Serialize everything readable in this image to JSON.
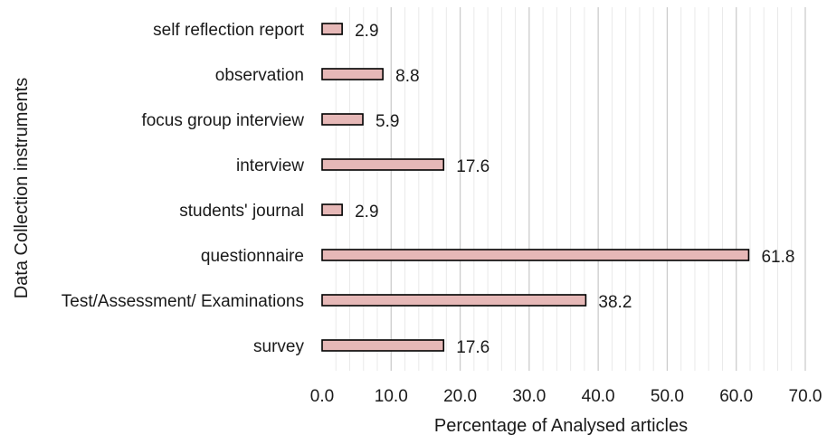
{
  "chart_data": {
    "type": "bar",
    "orientation": "horizontal",
    "title": "",
    "xlabel": "Percentage of Analysed articles",
    "ylabel": "Data Collection instruments",
    "categories": [
      "self reflection report",
      "observation",
      "focus group interview",
      "interview",
      "students' journal",
      "questionnaire",
      "Test/Assessment/ Examinations",
      "survey"
    ],
    "values": [
      2.9,
      8.8,
      5.9,
      17.6,
      2.9,
      61.8,
      38.2,
      17.6
    ],
    "value_labels": [
      "2.9",
      "8.8",
      "5.9",
      "17.6",
      "2.9",
      "61.8",
      "38.2",
      "17.6"
    ],
    "xlim": [
      0,
      70
    ],
    "x_ticks": [
      "0.0",
      "10.0",
      "20.0",
      "30.0",
      "40.0",
      "50.0",
      "60.0",
      "70.0"
    ],
    "grid": "vertical major and minor",
    "legend": "none",
    "colors": {
      "bar_fill": "#e6b8b7",
      "bar_stroke": "#000000",
      "major_grid": "#cccccc",
      "minor_grid": "#e9e9e9"
    }
  }
}
